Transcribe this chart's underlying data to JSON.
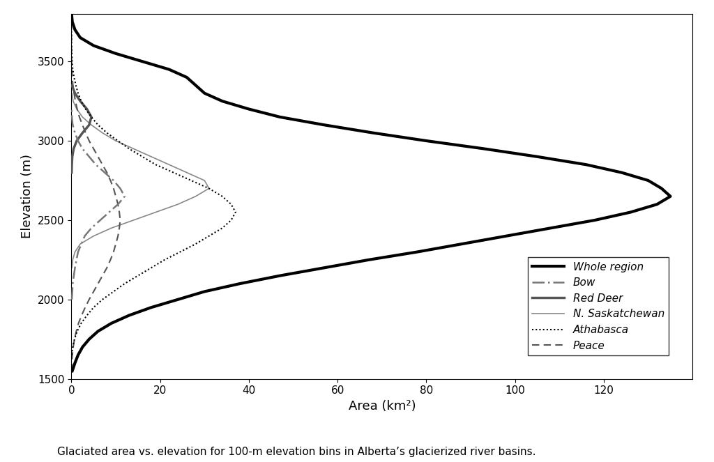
{
  "caption": "Glaciated area vs. elevation for 100-m elevation bins in Alberta’s glacierized river basins.",
  "xlabel": "Area (km²)",
  "ylabel": "Elevation (m)",
  "xlim": [
    0,
    140
  ],
  "ylim": [
    1500,
    3800
  ],
  "xticks": [
    0,
    20,
    40,
    60,
    80,
    100,
    120
  ],
  "yticks": [
    1500,
    2000,
    2500,
    3000,
    3500
  ],
  "figsize": [
    10.24,
    6.63
  ],
  "dpi": 100,
  "whole_region": {
    "label": "Whole region",
    "color": "#000000",
    "linewidth": 3.0,
    "elevation": [
      1550,
      1600,
      1650,
      1700,
      1750,
      1800,
      1850,
      1900,
      1950,
      2000,
      2050,
      2100,
      2150,
      2200,
      2250,
      2300,
      2350,
      2400,
      2450,
      2500,
      2550,
      2600,
      2650,
      2700,
      2750,
      2800,
      2850,
      2900,
      2950,
      3000,
      3050,
      3100,
      3150,
      3200,
      3250,
      3300,
      3350,
      3400,
      3450,
      3500,
      3550,
      3600,
      3650,
      3700,
      3750,
      3800
    ],
    "area": [
      0.2,
      0.8,
      1.5,
      2.5,
      4.0,
      6.0,
      9.0,
      13.0,
      18.0,
      24.0,
      30.0,
      38.0,
      47.0,
      57.0,
      67.0,
      78.0,
      88.0,
      98.0,
      108.0,
      118.0,
      126.0,
      132.0,
      135.0,
      133.0,
      130.0,
      124.0,
      116.0,
      105.0,
      93.0,
      80.0,
      68.0,
      57.0,
      47.0,
      40.0,
      34.0,
      30.0,
      28.0,
      26.0,
      22.0,
      16.0,
      10.0,
      5.0,
      2.0,
      0.8,
      0.2,
      0.05
    ]
  },
  "bow": {
    "label": "Bow",
    "color": "#777777",
    "linewidth": 1.8,
    "elevation": [
      2000,
      2100,
      2200,
      2300,
      2400,
      2450,
      2500,
      2550,
      2600,
      2650,
      2700,
      2750,
      2800,
      2850,
      2900,
      2950,
      3000,
      3050,
      3100,
      3150,
      3200
    ],
    "area": [
      0.1,
      0.3,
      0.8,
      1.5,
      3.0,
      4.5,
      6.5,
      8.5,
      10.5,
      12.0,
      11.0,
      9.5,
      7.5,
      5.5,
      4.0,
      2.5,
      1.5,
      0.8,
      0.3,
      0.1,
      0.05
    ]
  },
  "red_deer": {
    "label": "Red Deer",
    "color": "#555555",
    "linewidth": 2.5,
    "elevation": [
      2800,
      2850,
      2900,
      2950,
      3000,
      3050,
      3100,
      3150,
      3200,
      3250,
      3300,
      3350
    ],
    "area": [
      0.05,
      0.1,
      0.2,
      0.5,
      1.2,
      2.5,
      4.0,
      4.5,
      3.5,
      2.0,
      0.8,
      0.1
    ]
  },
  "n_saskatchewan": {
    "label": "N. Saskatchewan",
    "color": "#888888",
    "linewidth": 1.2,
    "elevation": [
      2200,
      2250,
      2300,
      2350,
      2400,
      2450,
      2500,
      2550,
      2600,
      2650,
      2700,
      2750,
      2800,
      2850,
      2900,
      2950,
      3000,
      3050,
      3100,
      3150,
      3200,
      3250,
      3300
    ],
    "area": [
      0.1,
      0.3,
      0.8,
      2.0,
      5.0,
      9.0,
      14.0,
      19.0,
      24.0,
      28.0,
      31.0,
      30.0,
      26.0,
      22.0,
      18.0,
      14.0,
      10.0,
      7.0,
      4.5,
      2.5,
      1.2,
      0.4,
      0.1
    ]
  },
  "athabasca": {
    "label": "Athabasca",
    "color": "#000000",
    "linewidth": 1.5,
    "elevation": [
      1650,
      1700,
      1750,
      1800,
      1850,
      1900,
      1950,
      2000,
      2050,
      2100,
      2150,
      2200,
      2250,
      2300,
      2350,
      2400,
      2450,
      2500,
      2550,
      2600,
      2650,
      2700,
      2750,
      2800,
      2850,
      2900,
      2950,
      3000,
      3050,
      3100,
      3150,
      3200,
      3250,
      3300,
      3350,
      3400,
      3450,
      3500,
      3550,
      3600,
      3650,
      3700
    ],
    "area": [
      0.1,
      0.3,
      0.7,
      1.3,
      2.2,
      3.5,
      5.0,
      7.0,
      9.5,
      12.0,
      15.0,
      18.0,
      21.0,
      24.5,
      28.0,
      31.0,
      34.0,
      36.0,
      37.0,
      36.0,
      34.0,
      31.0,
      27.0,
      23.0,
      19.0,
      16.0,
      13.0,
      10.5,
      8.0,
      6.0,
      4.5,
      3.2,
      2.2,
      1.5,
      1.0,
      0.6,
      0.3,
      0.15,
      0.08,
      0.03,
      0.01,
      0.005
    ]
  },
  "peace": {
    "label": "Peace",
    "color": "#555555",
    "linewidth": 1.5,
    "elevation": [
      1550,
      1600,
      1650,
      1700,
      1750,
      1800,
      1850,
      1900,
      1950,
      2000,
      2050,
      2100,
      2150,
      2200,
      2250,
      2300,
      2350,
      2400,
      2450,
      2500,
      2550,
      2600,
      2650,
      2700,
      2750,
      2800,
      2850,
      2900,
      2950,
      3000,
      3050,
      3100,
      3150,
      3200,
      3250,
      3300,
      3350,
      3400,
      3450,
      3500,
      3550,
      3600,
      3650,
      3700,
      3750
    ],
    "area": [
      0.05,
      0.1,
      0.2,
      0.4,
      0.7,
      1.1,
      1.6,
      2.3,
      3.1,
      4.0,
      5.0,
      6.0,
      7.0,
      8.0,
      8.8,
      9.5,
      10.0,
      10.5,
      10.8,
      11.0,
      10.8,
      10.5,
      10.0,
      9.5,
      8.8,
      8.0,
      7.0,
      6.0,
      5.0,
      4.0,
      3.2,
      2.5,
      1.8,
      1.3,
      0.9,
      0.6,
      0.35,
      0.18,
      0.08,
      0.03,
      0.01,
      0.005,
      0.002,
      0.001,
      0.0005
    ]
  }
}
